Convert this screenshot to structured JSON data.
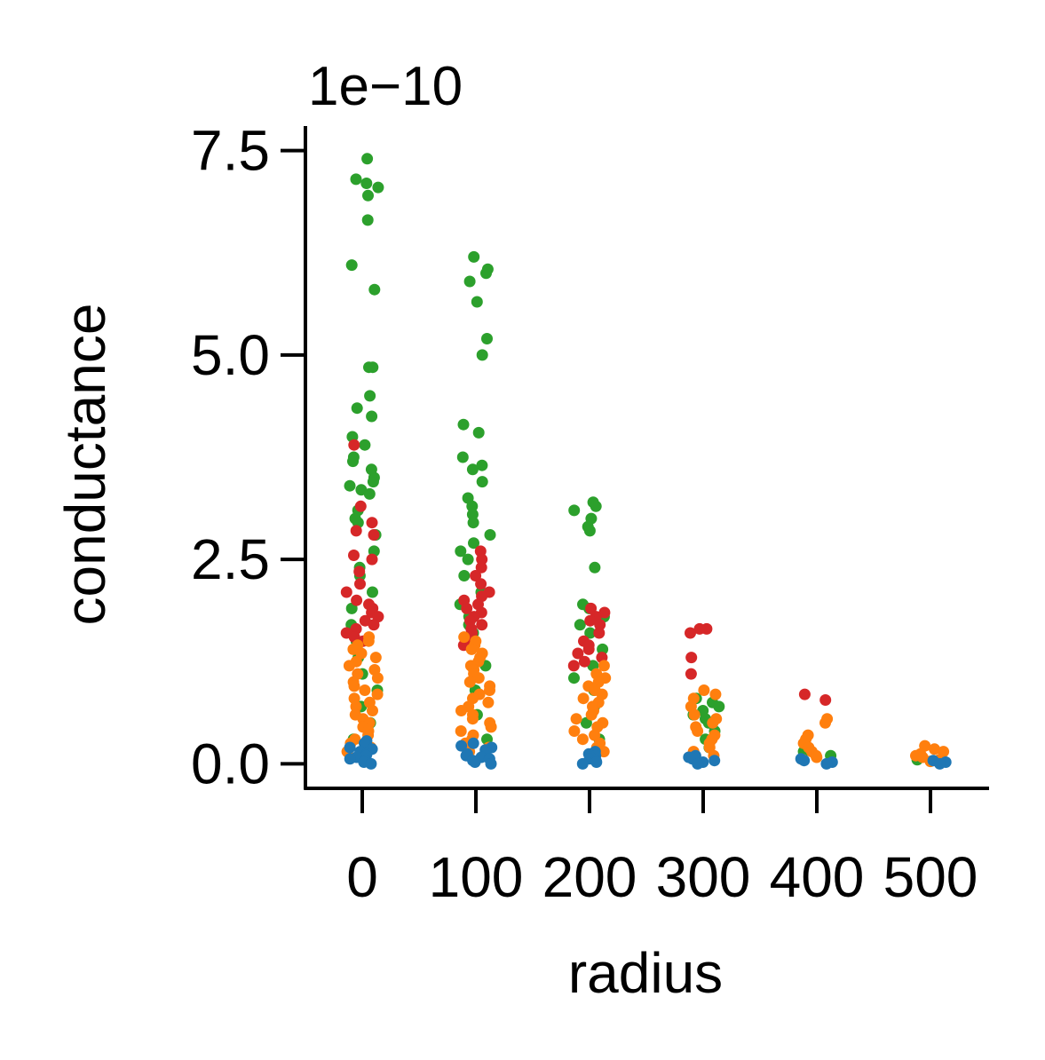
{
  "chart_data": {
    "type": "scatter",
    "variant": "strip",
    "xlabel": "radius",
    "ylabel": "conductance",
    "y_offset_label": "1e−10",
    "y_scale": 1e-10,
    "categories": [
      "0",
      "100",
      "200",
      "300",
      "400",
      "500"
    ],
    "ylim": [
      -0.3,
      7.8
    ],
    "yticks": [
      {
        "value": 0.0,
        "label": "0.0"
      },
      {
        "value": 2.5,
        "label": "2.5"
      },
      {
        "value": 5.0,
        "label": "5.0"
      },
      {
        "value": 7.5,
        "label": "7.5"
      }
    ],
    "grid": false,
    "legend": "none",
    "series": [
      {
        "color": "#2ca02c",
        "points": [
          [
            0,
            7.4
          ],
          [
            0,
            7.15
          ],
          [
            0,
            7.1
          ],
          [
            0,
            7.05
          ],
          [
            0,
            6.95
          ],
          [
            0,
            6.65
          ],
          [
            0,
            6.1
          ],
          [
            0,
            5.8
          ],
          [
            0,
            4.85
          ],
          [
            0,
            4.85
          ],
          [
            0,
            4.5
          ],
          [
            0,
            4.35
          ],
          [
            0,
            4.25
          ],
          [
            0,
            4.0
          ],
          [
            0,
            3.9
          ],
          [
            0,
            3.75
          ],
          [
            0,
            3.7
          ],
          [
            0,
            3.6
          ],
          [
            0,
            3.5
          ],
          [
            0,
            3.45
          ],
          [
            0,
            3.4
          ],
          [
            0,
            3.35
          ],
          [
            0,
            3.3
          ],
          [
            0,
            3.1
          ],
          [
            0,
            3.0
          ],
          [
            0,
            2.95
          ],
          [
            0,
            2.8
          ],
          [
            0,
            2.6
          ],
          [
            0,
            2.4
          ],
          [
            0,
            2.3
          ],
          [
            0,
            2.1
          ],
          [
            0,
            1.9
          ],
          [
            0,
            1.7
          ],
          [
            0,
            1.5
          ],
          [
            0,
            1.3
          ],
          [
            0,
            1.1
          ],
          [
            0,
            0.9
          ],
          [
            0,
            0.7
          ],
          [
            0,
            0.5
          ],
          [
            0,
            0.3
          ],
          [
            1,
            6.2
          ],
          [
            1,
            6.05
          ],
          [
            1,
            6.0
          ],
          [
            1,
            5.9
          ],
          [
            1,
            5.65
          ],
          [
            1,
            5.2
          ],
          [
            1,
            5.0
          ],
          [
            1,
            4.15
          ],
          [
            1,
            4.05
          ],
          [
            1,
            3.75
          ],
          [
            1,
            3.65
          ],
          [
            1,
            3.6
          ],
          [
            1,
            3.45
          ],
          [
            1,
            3.25
          ],
          [
            1,
            3.15
          ],
          [
            1,
            3.05
          ],
          [
            1,
            2.95
          ],
          [
            1,
            2.8
          ],
          [
            1,
            2.7
          ],
          [
            1,
            2.6
          ],
          [
            1,
            2.5
          ],
          [
            1,
            2.3
          ],
          [
            1,
            2.1
          ],
          [
            1,
            1.95
          ],
          [
            1,
            1.8
          ],
          [
            1,
            1.7
          ],
          [
            1,
            1.6
          ],
          [
            1,
            1.5
          ],
          [
            1,
            1.2
          ],
          [
            1,
            0.9
          ],
          [
            1,
            0.6
          ],
          [
            1,
            0.3
          ],
          [
            2,
            3.2
          ],
          [
            2,
            3.15
          ],
          [
            2,
            3.1
          ],
          [
            2,
            3.0
          ],
          [
            2,
            2.9
          ],
          [
            2,
            2.85
          ],
          [
            2,
            2.4
          ],
          [
            2,
            1.95
          ],
          [
            2,
            1.9
          ],
          [
            2,
            1.8
          ],
          [
            2,
            1.7
          ],
          [
            2,
            1.6
          ],
          [
            2,
            1.4
          ],
          [
            2,
            1.2
          ],
          [
            2,
            1.05
          ],
          [
            2,
            0.9
          ],
          [
            2,
            0.7
          ],
          [
            2,
            0.5
          ],
          [
            2,
            0.3
          ],
          [
            2,
            0.15
          ],
          [
            3,
            0.8
          ],
          [
            3,
            0.75
          ],
          [
            3,
            0.7
          ],
          [
            3,
            0.65
          ],
          [
            3,
            0.6
          ],
          [
            3,
            0.55
          ],
          [
            3,
            0.5
          ],
          [
            3,
            0.4
          ],
          [
            3,
            0.3
          ],
          [
            3,
            0.2
          ],
          [
            4,
            0.15
          ],
          [
            4,
            0.1
          ],
          [
            5,
            0.05
          ]
        ]
      },
      {
        "color": "#d62728",
        "points": [
          [
            0,
            3.9
          ],
          [
            0,
            3.15
          ],
          [
            0,
            2.95
          ],
          [
            0,
            2.85
          ],
          [
            0,
            2.8
          ],
          [
            0,
            2.55
          ],
          [
            0,
            2.5
          ],
          [
            0,
            2.35
          ],
          [
            0,
            2.2
          ],
          [
            0,
            2.1
          ],
          [
            0,
            2.0
          ],
          [
            0,
            1.95
          ],
          [
            0,
            1.9
          ],
          [
            0,
            1.85
          ],
          [
            0,
            1.8
          ],
          [
            0,
            1.75
          ],
          [
            0,
            1.7
          ],
          [
            0,
            1.65
          ],
          [
            0,
            1.6
          ],
          [
            0,
            1.55
          ],
          [
            0,
            1.5
          ],
          [
            1,
            2.6
          ],
          [
            1,
            2.5
          ],
          [
            1,
            2.4
          ],
          [
            1,
            2.3
          ],
          [
            1,
            2.2
          ],
          [
            1,
            2.1
          ],
          [
            1,
            2.05
          ],
          [
            1,
            2.0
          ],
          [
            1,
            1.95
          ],
          [
            1,
            1.9
          ],
          [
            1,
            1.85
          ],
          [
            1,
            1.8
          ],
          [
            1,
            1.75
          ],
          [
            1,
            1.7
          ],
          [
            1,
            1.65
          ],
          [
            1,
            1.6
          ],
          [
            1,
            1.55
          ],
          [
            1,
            1.5
          ],
          [
            1,
            1.45
          ],
          [
            2,
            1.9
          ],
          [
            2,
            1.85
          ],
          [
            2,
            1.8
          ],
          [
            2,
            1.75
          ],
          [
            2,
            1.7
          ],
          [
            2,
            1.6
          ],
          [
            2,
            1.5
          ],
          [
            2,
            1.45
          ],
          [
            2,
            1.4
          ],
          [
            2,
            1.35
          ],
          [
            2,
            1.3
          ],
          [
            2,
            1.25
          ],
          [
            2,
            1.2
          ],
          [
            3,
            1.65
          ],
          [
            3,
            1.65
          ],
          [
            3,
            1.6
          ],
          [
            3,
            1.3
          ],
          [
            3,
            1.1
          ],
          [
            4,
            0.85
          ],
          [
            4,
            0.78
          ]
        ]
      },
      {
        "color": "#ff7f0e",
        "points": [
          [
            0,
            1.55
          ],
          [
            0,
            1.5
          ],
          [
            0,
            1.45
          ],
          [
            0,
            1.4
          ],
          [
            0,
            1.35
          ],
          [
            0,
            1.3
          ],
          [
            0,
            1.25
          ],
          [
            0,
            1.2
          ],
          [
            0,
            1.15
          ],
          [
            0,
            1.1
          ],
          [
            0,
            1.05
          ],
          [
            0,
            1.0
          ],
          [
            0,
            0.95
          ],
          [
            0,
            0.9
          ],
          [
            0,
            0.85
          ],
          [
            0,
            0.8
          ],
          [
            0,
            0.75
          ],
          [
            0,
            0.7
          ],
          [
            0,
            0.65
          ],
          [
            0,
            0.6
          ],
          [
            0,
            0.55
          ],
          [
            0,
            0.5
          ],
          [
            0,
            0.45
          ],
          [
            0,
            0.4
          ],
          [
            0,
            0.35
          ],
          [
            0,
            0.3
          ],
          [
            0,
            0.25
          ],
          [
            0,
            0.2
          ],
          [
            0,
            0.15
          ],
          [
            1,
            1.55
          ],
          [
            1,
            1.5
          ],
          [
            1,
            1.45
          ],
          [
            1,
            1.4
          ],
          [
            1,
            1.35
          ],
          [
            1,
            1.3
          ],
          [
            1,
            1.25
          ],
          [
            1,
            1.2
          ],
          [
            1,
            1.15
          ],
          [
            1,
            1.1
          ],
          [
            1,
            1.05
          ],
          [
            1,
            1.0
          ],
          [
            1,
            0.95
          ],
          [
            1,
            0.9
          ],
          [
            1,
            0.85
          ],
          [
            1,
            0.8
          ],
          [
            1,
            0.75
          ],
          [
            1,
            0.7
          ],
          [
            1,
            0.65
          ],
          [
            1,
            0.6
          ],
          [
            1,
            0.55
          ],
          [
            1,
            0.5
          ],
          [
            1,
            0.45
          ],
          [
            1,
            0.4
          ],
          [
            1,
            0.35
          ],
          [
            1,
            0.3
          ],
          [
            1,
            0.25
          ],
          [
            1,
            0.2
          ],
          [
            1,
            0.15
          ],
          [
            2,
            1.2
          ],
          [
            2,
            1.1
          ],
          [
            2,
            1.05
          ],
          [
            2,
            1.0
          ],
          [
            2,
            0.95
          ],
          [
            2,
            0.9
          ],
          [
            2,
            0.85
          ],
          [
            2,
            0.8
          ],
          [
            2,
            0.75
          ],
          [
            2,
            0.7
          ],
          [
            2,
            0.65
          ],
          [
            2,
            0.6
          ],
          [
            2,
            0.55
          ],
          [
            2,
            0.5
          ],
          [
            2,
            0.45
          ],
          [
            2,
            0.4
          ],
          [
            2,
            0.35
          ],
          [
            2,
            0.3
          ],
          [
            2,
            0.25
          ],
          [
            2,
            0.2
          ],
          [
            2,
            0.15
          ],
          [
            3,
            0.9
          ],
          [
            3,
            0.85
          ],
          [
            3,
            0.8
          ],
          [
            3,
            0.7
          ],
          [
            3,
            0.6
          ],
          [
            3,
            0.55
          ],
          [
            3,
            0.5
          ],
          [
            3,
            0.45
          ],
          [
            3,
            0.4
          ],
          [
            3,
            0.35
          ],
          [
            3,
            0.3
          ],
          [
            3,
            0.25
          ],
          [
            3,
            0.2
          ],
          [
            3,
            0.15
          ],
          [
            3,
            0.1
          ],
          [
            4,
            0.55
          ],
          [
            4,
            0.5
          ],
          [
            4,
            0.35
          ],
          [
            4,
            0.3
          ],
          [
            4,
            0.25
          ],
          [
            4,
            0.2
          ],
          [
            4,
            0.15
          ],
          [
            4,
            0.1
          ],
          [
            4,
            0.08
          ],
          [
            4,
            0.05
          ],
          [
            5,
            0.22
          ],
          [
            5,
            0.18
          ],
          [
            5,
            0.15
          ],
          [
            5,
            0.12
          ],
          [
            5,
            0.1
          ],
          [
            5,
            0.08
          ],
          [
            5,
            0.05
          ],
          [
            5,
            0.03
          ]
        ]
      },
      {
        "color": "#1f77b4",
        "points": [
          [
            0,
            0.28
          ],
          [
            0,
            0.25
          ],
          [
            0,
            0.2
          ],
          [
            0,
            0.18
          ],
          [
            0,
            0.15
          ],
          [
            0,
            0.12
          ],
          [
            0,
            0.1
          ],
          [
            0,
            0.08
          ],
          [
            0,
            0.06
          ],
          [
            0,
            0.04
          ],
          [
            0,
            0.02
          ],
          [
            0,
            0.0
          ],
          [
            1,
            0.25
          ],
          [
            1,
            0.22
          ],
          [
            1,
            0.2
          ],
          [
            1,
            0.17
          ],
          [
            1,
            0.14
          ],
          [
            1,
            0.12
          ],
          [
            1,
            0.1
          ],
          [
            1,
            0.08
          ],
          [
            1,
            0.06
          ],
          [
            1,
            0.04
          ],
          [
            1,
            0.02
          ],
          [
            1,
            0.0
          ],
          [
            2,
            0.15
          ],
          [
            2,
            0.12
          ],
          [
            2,
            0.1
          ],
          [
            2,
            0.08
          ],
          [
            2,
            0.06
          ],
          [
            2,
            0.04
          ],
          [
            2,
            0.02
          ],
          [
            2,
            0.0
          ],
          [
            3,
            0.1
          ],
          [
            3,
            0.08
          ],
          [
            3,
            0.06
          ],
          [
            3,
            0.04
          ],
          [
            3,
            0.02
          ],
          [
            3,
            0.0
          ],
          [
            4,
            0.06
          ],
          [
            4,
            0.04
          ],
          [
            4,
            0.02
          ],
          [
            4,
            0.0
          ],
          [
            5,
            0.04
          ],
          [
            5,
            0.02
          ],
          [
            5,
            0.0
          ]
        ]
      }
    ]
  }
}
